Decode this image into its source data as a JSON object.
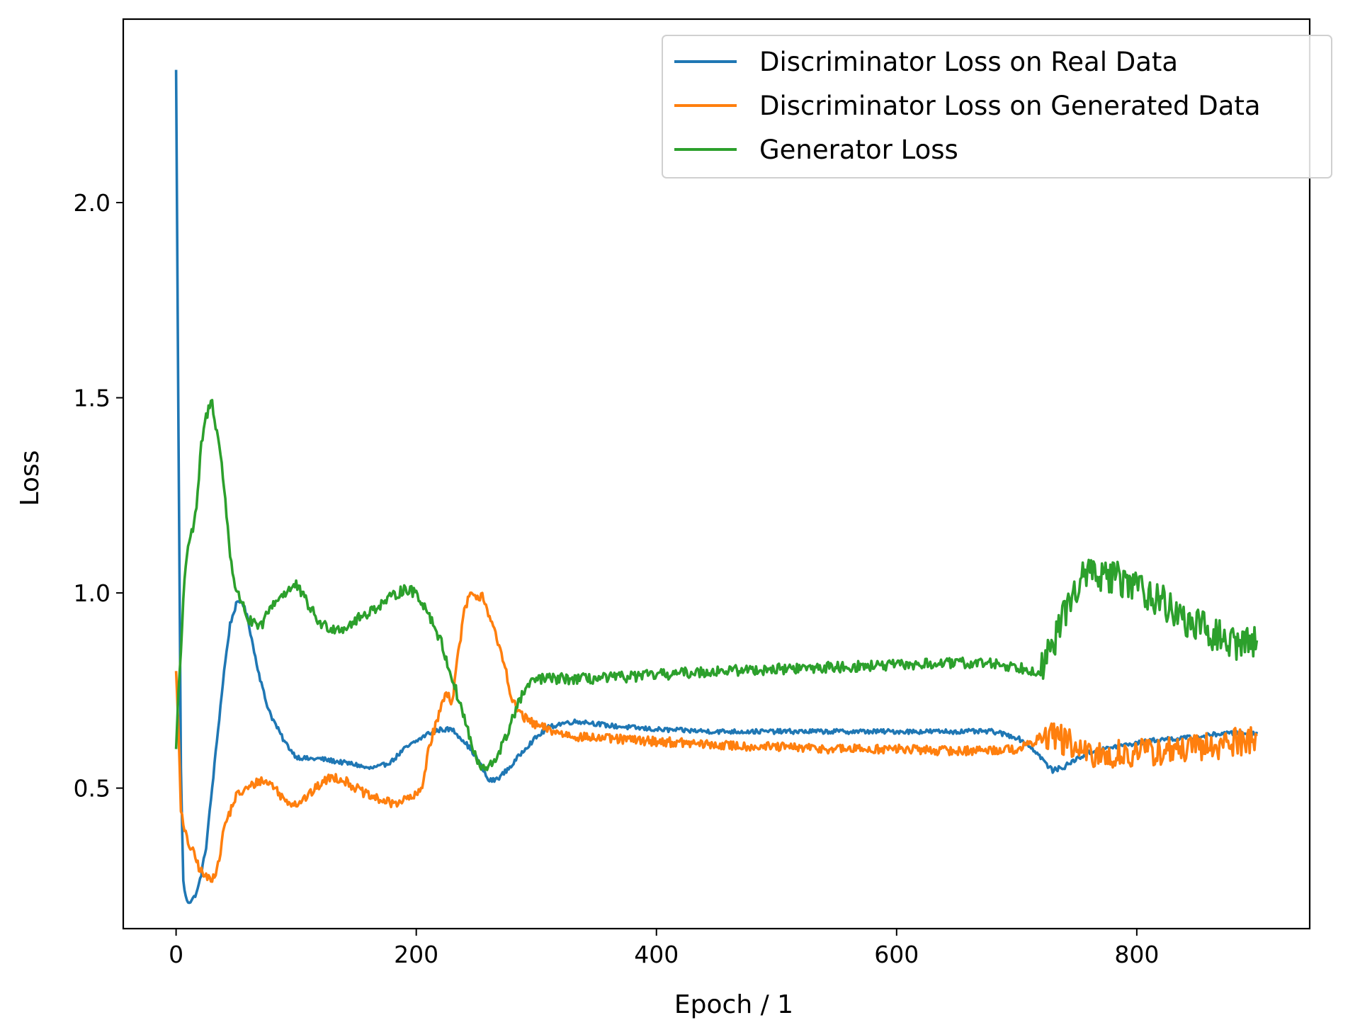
{
  "chart_data": {
    "type": "line",
    "title": "",
    "xlabel": "Epoch / 1",
    "ylabel": "Loss",
    "xlim": [
      -44,
      944
    ],
    "ylim": [
      0.14,
      2.47
    ],
    "xticks": [
      0,
      200,
      400,
      600,
      800
    ],
    "yticks": [
      0.5,
      1.0,
      1.5,
      2.0
    ],
    "xtick_labels": [
      "0",
      "200",
      "400",
      "600",
      "800"
    ],
    "ytick_labels": [
      "0.5",
      "1.0",
      "1.5",
      "2.0"
    ],
    "grid": false,
    "legend_position": "top-right",
    "series": [
      {
        "name": "Discriminator Loss on Real Data",
        "color": "#1f77b4",
        "x": [
          0,
          2,
          4,
          6,
          8,
          10,
          12,
          15,
          18,
          21,
          25,
          30,
          35,
          40,
          45,
          50,
          55,
          60,
          65,
          70,
          75,
          80,
          90,
          100,
          110,
          120,
          130,
          140,
          150,
          160,
          170,
          180,
          190,
          200,
          210,
          220,
          230,
          240,
          250,
          255,
          260,
          265,
          270,
          280,
          290,
          300,
          310,
          320,
          330,
          340,
          360,
          400,
          450,
          500,
          550,
          600,
          650,
          680,
          700,
          710,
          720,
          725,
          730,
          740,
          750,
          760,
          780,
          800,
          820,
          850,
          870,
          900
        ],
        "y": [
          2.34,
          1.4,
          0.55,
          0.26,
          0.22,
          0.21,
          0.21,
          0.22,
          0.24,
          0.28,
          0.35,
          0.5,
          0.65,
          0.8,
          0.92,
          0.97,
          0.98,
          0.93,
          0.85,
          0.78,
          0.72,
          0.68,
          0.62,
          0.58,
          0.575,
          0.575,
          0.57,
          0.565,
          0.56,
          0.55,
          0.555,
          0.57,
          0.6,
          0.62,
          0.64,
          0.65,
          0.65,
          0.62,
          0.58,
          0.55,
          0.52,
          0.52,
          0.53,
          0.56,
          0.6,
          0.63,
          0.655,
          0.665,
          0.67,
          0.67,
          0.66,
          0.65,
          0.645,
          0.645,
          0.645,
          0.645,
          0.645,
          0.645,
          0.63,
          0.61,
          0.58,
          0.56,
          0.545,
          0.555,
          0.575,
          0.59,
          0.605,
          0.615,
          0.625,
          0.63,
          0.64,
          0.64
        ],
        "noise": 0.006
      },
      {
        "name": "Discriminator Loss on Generated Data",
        "color": "#ff7f0e",
        "x": [
          0,
          2,
          4,
          6,
          8,
          10,
          15,
          20,
          25,
          30,
          35,
          40,
          50,
          60,
          70,
          80,
          90,
          100,
          110,
          120,
          130,
          140,
          150,
          160,
          170,
          180,
          190,
          200,
          205,
          210,
          215,
          220,
          225,
          230,
          235,
          240,
          245,
          250,
          255,
          260,
          265,
          270,
          275,
          280,
          290,
          300,
          320,
          340,
          400,
          450,
          500,
          550,
          600,
          650,
          700,
          710,
          720,
          730,
          740,
          750,
          760,
          800,
          850,
          900
        ],
        "y": [
          0.8,
          0.65,
          0.45,
          0.4,
          0.38,
          0.36,
          0.33,
          0.29,
          0.27,
          0.27,
          0.3,
          0.4,
          0.48,
          0.5,
          0.52,
          0.51,
          0.47,
          0.46,
          0.48,
          0.51,
          0.53,
          0.52,
          0.5,
          0.48,
          0.47,
          0.46,
          0.47,
          0.48,
          0.5,
          0.6,
          0.65,
          0.7,
          0.75,
          0.72,
          0.85,
          0.95,
          1.0,
          0.98,
          1.0,
          0.95,
          0.9,
          0.85,
          0.8,
          0.72,
          0.68,
          0.66,
          0.64,
          0.63,
          0.62,
          0.61,
          0.605,
          0.6,
          0.6,
          0.595,
          0.6,
          0.61,
          0.63,
          0.64,
          0.62,
          0.6,
          0.58,
          0.59,
          0.6,
          0.63
        ],
        "noise": 0.012
      },
      {
        "name": "Generator Loss",
        "color": "#2ca02c",
        "x": [
          0,
          2,
          4,
          6,
          8,
          10,
          12,
          15,
          18,
          21,
          25,
          28,
          30,
          33,
          36,
          40,
          45,
          50,
          55,
          60,
          65,
          70,
          75,
          80,
          90,
          100,
          110,
          120,
          130,
          140,
          150,
          160,
          170,
          180,
          190,
          200,
          210,
          220,
          230,
          240,
          250,
          255,
          260,
          265,
          270,
          275,
          280,
          290,
          300,
          320,
          350,
          400,
          450,
          500,
          550,
          600,
          650,
          680,
          700,
          720,
          730,
          740,
          750,
          760,
          780,
          800,
          820,
          840,
          860,
          880,
          900
        ],
        "y": [
          0.6,
          0.75,
          0.85,
          0.98,
          1.08,
          1.12,
          1.15,
          1.17,
          1.25,
          1.38,
          1.45,
          1.48,
          1.49,
          1.43,
          1.38,
          1.27,
          1.1,
          1.0,
          0.98,
          0.93,
          0.92,
          0.91,
          0.94,
          0.97,
          1.0,
          1.02,
          0.97,
          0.92,
          0.91,
          0.91,
          0.93,
          0.95,
          0.97,
          0.99,
          1.01,
          1.0,
          0.95,
          0.88,
          0.78,
          0.68,
          0.57,
          0.55,
          0.55,
          0.57,
          0.6,
          0.63,
          0.68,
          0.75,
          0.78,
          0.78,
          0.78,
          0.79,
          0.8,
          0.805,
          0.81,
          0.815,
          0.82,
          0.82,
          0.81,
          0.8,
          0.86,
          0.95,
          1.02,
          1.05,
          1.04,
          1.02,
          0.98,
          0.93,
          0.9,
          0.87,
          0.88
        ],
        "noise": 0.014
      }
    ]
  }
}
